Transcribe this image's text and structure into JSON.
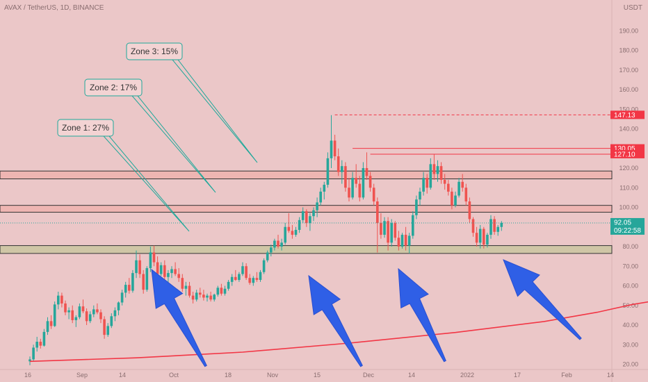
{
  "header": {
    "symbol": "AVAX / TetherUS, 1D, BINANCE",
    "currency": "USDT"
  },
  "chart_data": {
    "type": "candlestick",
    "ylim": [
      20,
      200
    ],
    "y_ticks": [
      20,
      30,
      40,
      50,
      60,
      70,
      80,
      90,
      100,
      110,
      120,
      130,
      140,
      150,
      160,
      170,
      180,
      190
    ],
    "x_ticks": [
      "16",
      "Sep",
      "14",
      "Oct",
      "18",
      "Nov",
      "15",
      "Dec",
      "14",
      "2022",
      "17",
      "Feb",
      "14"
    ],
    "price_labels": [
      {
        "value": 147.13,
        "text": "147.13",
        "color": "#f23645",
        "style": "dashed"
      },
      {
        "value": 130.05,
        "text": "130.05",
        "color": "#f23645",
        "style": "solid"
      },
      {
        "value": 127.1,
        "text": "127.10",
        "color": "#f23645",
        "style": "solid"
      },
      {
        "value": 92.05,
        "text": "92.05",
        "sub": "09:22:58",
        "color": "#26a69a",
        "style": "dotted"
      }
    ],
    "zones": [
      {
        "from": 114.5,
        "to": 118.5,
        "fill": "#eeb5b2",
        "stroke": "#333333"
      },
      {
        "from": 97.5,
        "to": 101.0,
        "fill": "#eeb5b2",
        "stroke": "#333333"
      },
      {
        "from": 76.5,
        "to": 80.5,
        "fill": "#cfc6a6",
        "stroke": "#333333"
      }
    ],
    "annotations": [
      {
        "text": "Zone 1: 27%"
      },
      {
        "text": "Zone 2: 17%"
      },
      {
        "text": "Zone 3: 15%"
      }
    ],
    "ma": [
      [
        0,
        21.5
      ],
      [
        30,
        23.3
      ],
      [
        60,
        26.2
      ],
      [
        90,
        30.8
      ],
      [
        120,
        36.2
      ],
      [
        145,
        41.8
      ],
      [
        160,
        46.5
      ],
      [
        170,
        50.5
      ],
      [
        175,
        52.0
      ],
      [
        185,
        57.0
      ],
      [
        195,
        61.5
      ]
    ],
    "candles": [
      [
        21.5,
        24.0,
        19.5,
        22.5
      ],
      [
        22.5,
        30.0,
        21.8,
        28.5
      ],
      [
        28.5,
        34.0,
        26.5,
        31.5
      ],
      [
        31.5,
        33.0,
        28.0,
        29.5
      ],
      [
        29.5,
        38.0,
        29.0,
        36.5
      ],
      [
        36.5,
        44.0,
        35.0,
        42.0
      ],
      [
        42.0,
        45.0,
        38.0,
        39.5
      ],
      [
        39.5,
        52.0,
        39.0,
        50.5
      ],
      [
        50.5,
        57.0,
        48.0,
        55.0
      ],
      [
        55.0,
        56.5,
        49.0,
        51.0
      ],
      [
        51.0,
        52.5,
        45.0,
        46.5
      ],
      [
        46.5,
        49.0,
        43.0,
        47.5
      ],
      [
        47.5,
        50.0,
        41.0,
        42.5
      ],
      [
        42.5,
        45.0,
        39.0,
        44.0
      ],
      [
        44.0,
        51.0,
        43.0,
        49.5
      ],
      [
        49.5,
        53.0,
        46.0,
        47.0
      ],
      [
        47.0,
        48.5,
        40.0,
        42.0
      ],
      [
        42.0,
        47.0,
        41.0,
        45.5
      ],
      [
        45.5,
        50.0,
        44.0,
        48.0
      ],
      [
        48.0,
        51.0,
        45.5,
        46.5
      ],
      [
        46.5,
        48.0,
        41.0,
        43.0
      ],
      [
        43.0,
        44.5,
        33.0,
        35.0
      ],
      [
        35.0,
        41.0,
        34.0,
        39.5
      ],
      [
        39.5,
        46.0,
        38.5,
        44.5
      ],
      [
        44.5,
        49.0,
        42.0,
        47.5
      ],
      [
        47.5,
        52.0,
        45.0,
        51.5
      ],
      [
        51.5,
        58.0,
        50.0,
        56.5
      ],
      [
        56.5,
        62.0,
        54.0,
        60.5
      ],
      [
        60.5,
        64.0,
        56.0,
        57.5
      ],
      [
        57.5,
        68.0,
        56.5,
        66.5
      ],
      [
        66.5,
        78.0,
        64.0,
        73.0
      ],
      [
        73.0,
        76.0,
        64.0,
        66.0
      ],
      [
        66.0,
        68.0,
        56.0,
        58.0
      ],
      [
        58.0,
        70.0,
        57.0,
        69.0
      ],
      [
        69.0,
        80.0,
        67.0,
        77.0
      ],
      [
        77.0,
        80.5,
        70.0,
        72.0
      ],
      [
        72.0,
        75.0,
        64.0,
        66.0
      ],
      [
        66.0,
        72.0,
        65.0,
        70.5
      ],
      [
        70.5,
        73.0,
        63.0,
        64.5
      ],
      [
        64.5,
        68.0,
        61.0,
        66.5
      ],
      [
        66.5,
        70.0,
        64.0,
        68.5
      ],
      [
        68.5,
        72.0,
        65.0,
        66.0
      ],
      [
        66.0,
        69.0,
        62.0,
        64.0
      ],
      [
        64.0,
        66.0,
        57.0,
        58.5
      ],
      [
        58.5,
        62.0,
        55.0,
        60.0
      ],
      [
        60.0,
        62.0,
        54.0,
        55.0
      ],
      [
        55.0,
        57.0,
        51.0,
        53.0
      ],
      [
        53.0,
        58.0,
        52.0,
        56.5
      ],
      [
        56.5,
        59.0,
        54.0,
        55.5
      ],
      [
        55.5,
        58.0,
        52.5,
        54.0
      ],
      [
        54.0,
        56.0,
        52.0,
        55.0
      ],
      [
        55.0,
        57.0,
        52.0,
        53.0
      ],
      [
        53.0,
        56.0,
        52.0,
        55.5
      ],
      [
        55.5,
        60.0,
        54.5,
        59.0
      ],
      [
        59.0,
        61.0,
        55.0,
        56.0
      ],
      [
        56.0,
        60.0,
        55.0,
        58.5
      ],
      [
        58.5,
        63.0,
        57.5,
        62.0
      ],
      [
        62.0,
        66.0,
        60.0,
        64.5
      ],
      [
        64.5,
        68.0,
        62.5,
        63.0
      ],
      [
        63.0,
        67.0,
        62.0,
        66.0
      ],
      [
        66.0,
        72.0,
        65.0,
        70.0
      ],
      [
        70.0,
        71.5,
        63.0,
        64.0
      ],
      [
        64.0,
        66.0,
        60.5,
        61.5
      ],
      [
        61.5,
        65.0,
        60.0,
        64.0
      ],
      [
        64.0,
        67.0,
        62.0,
        63.0
      ],
      [
        63.0,
        68.0,
        62.0,
        67.0
      ],
      [
        67.0,
        74.0,
        66.0,
        73.0
      ],
      [
        73.0,
        78.0,
        72.0,
        77.0
      ],
      [
        77.0,
        81.0,
        75.0,
        79.5
      ],
      [
        79.5,
        84.0,
        78.0,
        83.0
      ],
      [
        83.0,
        86.0,
        79.0,
        80.0
      ],
      [
        80.0,
        84.0,
        78.0,
        82.0
      ],
      [
        82.0,
        92.0,
        81.0,
        90.0
      ],
      [
        90.0,
        97.0,
        87.0,
        88.0
      ],
      [
        88.0,
        91.0,
        84.0,
        86.0
      ],
      [
        86.0,
        90.0,
        85.0,
        88.5
      ],
      [
        88.5,
        95.0,
        87.0,
        93.5
      ],
      [
        93.5,
        100.0,
        92.0,
        98.0
      ],
      [
        98.0,
        99.0,
        90.0,
        92.0
      ],
      [
        92.0,
        97.0,
        88.0,
        95.5
      ],
      [
        95.5,
        100.0,
        93.0,
        98.5
      ],
      [
        98.5,
        105.0,
        95.0,
        102.5
      ],
      [
        102.5,
        110.0,
        101.0,
        108.0
      ],
      [
        108.0,
        113.0,
        104.0,
        111.5
      ],
      [
        111.5,
        128.0,
        110.0,
        125.0
      ],
      [
        125.0,
        147.0,
        120.0,
        134.0
      ],
      [
        134.0,
        137.0,
        124.0,
        126.0
      ],
      [
        126.0,
        130.0,
        116.0,
        118.0
      ],
      [
        118.0,
        124.0,
        112.0,
        121.0
      ],
      [
        121.0,
        123.0,
        108.0,
        110.0
      ],
      [
        110.0,
        115.0,
        103.0,
        105.0
      ],
      [
        105.0,
        118.0,
        104.0,
        115.0
      ],
      [
        115.0,
        122.0,
        110.0,
        112.0
      ],
      [
        112.0,
        116.0,
        103.0,
        105.0
      ],
      [
        105.0,
        123.0,
        104.0,
        120.0
      ],
      [
        120.0,
        128.0,
        114.0,
        116.0
      ],
      [
        116.0,
        118.0,
        108.0,
        110.0
      ],
      [
        110.0,
        112.0,
        101.0,
        103.0
      ],
      [
        103.0,
        105.0,
        77.0,
        92.0
      ],
      [
        92.0,
        97.0,
        84.0,
        86.0
      ],
      [
        86.0,
        95.0,
        84.5,
        93.0
      ],
      [
        93.0,
        95.0,
        78.0,
        82.0
      ],
      [
        82.0,
        94.0,
        80.0,
        92.0
      ],
      [
        92.0,
        93.0,
        83.0,
        84.5
      ],
      [
        84.5,
        88.0,
        78.0,
        80.0
      ],
      [
        80.0,
        87.0,
        79.0,
        86.0
      ],
      [
        86.0,
        90.0,
        78.0,
        80.5
      ],
      [
        80.5,
        87.0,
        76.5,
        85.5
      ],
      [
        85.5,
        98.0,
        84.0,
        96.0
      ],
      [
        96.0,
        106.0,
        94.0,
        104.0
      ],
      [
        104.0,
        110.0,
        101.0,
        108.0
      ],
      [
        108.0,
        118.0,
        106.0,
        115.0
      ],
      [
        115.0,
        117.0,
        107.0,
        110.0
      ],
      [
        110.0,
        125.0,
        109.0,
        122.0
      ],
      [
        122.0,
        127.0,
        114.0,
        117.0
      ],
      [
        117.0,
        124.0,
        113.0,
        121.0
      ],
      [
        121.0,
        123.0,
        112.0,
        114.0
      ],
      [
        114.0,
        117.0,
        109.0,
        112.0
      ],
      [
        112.0,
        114.0,
        106.0,
        108.0
      ],
      [
        108.0,
        110.0,
        99.0,
        101.0
      ],
      [
        101.0,
        108.0,
        100.0,
        106.0
      ],
      [
        106.0,
        115.0,
        105.0,
        113.0
      ],
      [
        113.0,
        117.0,
        108.0,
        110.0
      ],
      [
        110.0,
        112.0,
        101.0,
        103.0
      ],
      [
        103.0,
        105.0,
        92.0,
        94.0
      ],
      [
        94.0,
        95.0,
        85.0,
        87.0
      ],
      [
        87.0,
        90.0,
        80.0,
        82.0
      ],
      [
        82.0,
        91.0,
        79.0,
        89.0
      ],
      [
        89.0,
        90.0,
        79.0,
        81.0
      ],
      [
        81.0,
        87.0,
        79.5,
        86.0
      ],
      [
        86.0,
        96.0,
        84.0,
        94.0
      ],
      [
        94.0,
        95.5,
        86.0,
        87.5
      ],
      [
        87.5,
        91.0,
        85.5,
        90.0
      ],
      [
        90.0,
        93.0,
        88.0,
        92.05
      ]
    ]
  }
}
